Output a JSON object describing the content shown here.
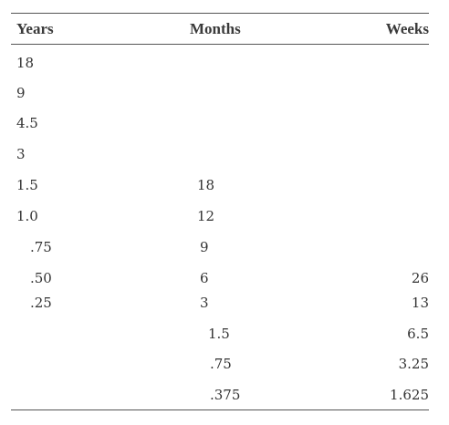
{
  "table": {
    "headers": {
      "years": "Years",
      "months": "Months",
      "weeks": "Weeks"
    },
    "rows": [
      {
        "years": "18",
        "months": "",
        "weeks": ""
      },
      {
        "years": "9",
        "months": "",
        "weeks": ""
      },
      {
        "years": "4.5",
        "months": "",
        "weeks": ""
      },
      {
        "years": "3",
        "months": "",
        "weeks": ""
      },
      {
        "years": "1.5",
        "months": "18",
        "weeks": ""
      },
      {
        "years": "1.0",
        "months": "12",
        "weeks": ""
      },
      {
        "years": ".75",
        "months": "9",
        "weeks": ""
      },
      {
        "years": ".50",
        "months": "6",
        "weeks": "26"
      },
      {
        "years": ".25",
        "months": "3",
        "weeks": "13"
      },
      {
        "years": "",
        "months": "1.5",
        "weeks": "6.5"
      },
      {
        "years": "",
        "months": ".75",
        "weeks": "3.25"
      },
      {
        "years": "",
        "months": ".375",
        "weeks": "1.625"
      }
    ]
  }
}
